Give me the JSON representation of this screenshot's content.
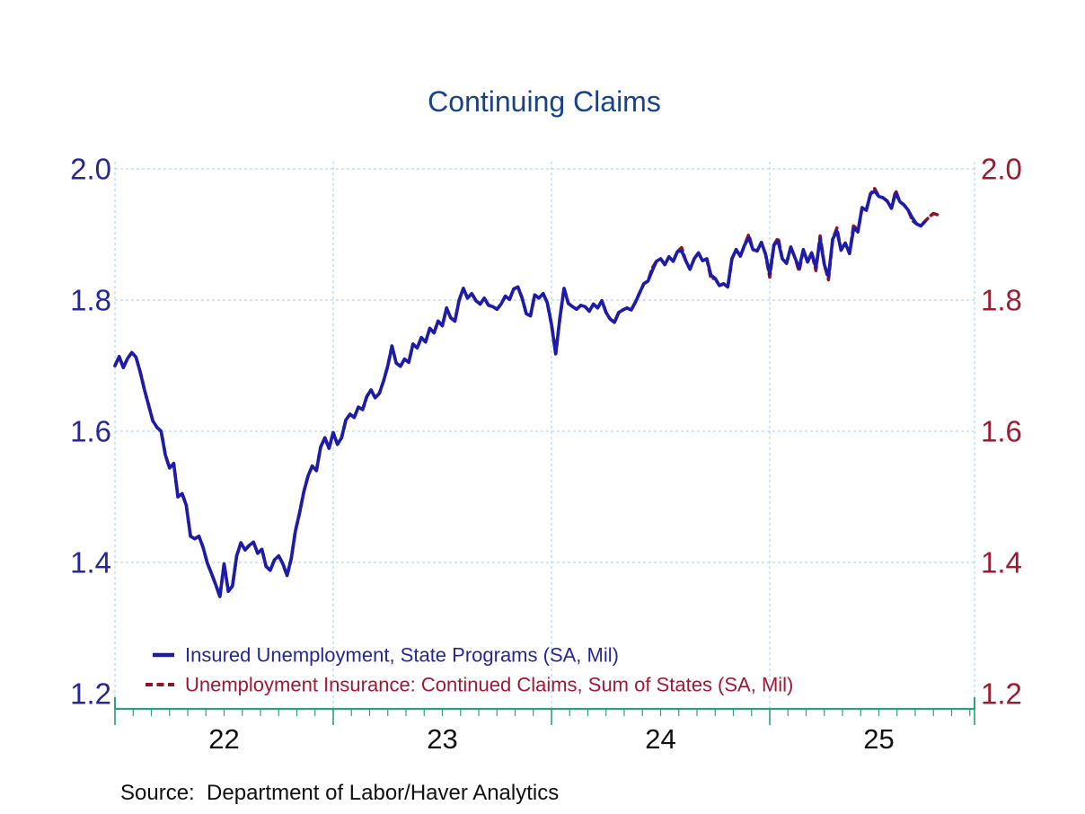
{
  "colors": {
    "title": "#17438C",
    "left_axis_text": "#26269B",
    "right_axis_text": "#9C1B31",
    "x_axis_text": "#111111",
    "axis_line": "#2F9E82",
    "gridline": "#A9CFE2",
    "series1_line": "#1C1CAB",
    "series2_line": "#8E1624",
    "legend1_text": "#26269B",
    "legend2_text": "#A21834",
    "source_text": "#111111",
    "background": "#FFFFFF"
  },
  "chart_data": {
    "type": "line",
    "title": "Continuing Claims",
    "source": "Source:  Department of Labor/Haver Analytics",
    "legend_position": "bottom-left inside plot area",
    "grid": "dashed light-blue horizontal and vertical (year) gridlines",
    "y_axis": {
      "tick_labels": [
        "2.0",
        "1.8",
        "1.6",
        "1.4",
        "1.2"
      ],
      "tick_values": [
        2.0,
        1.8,
        1.6,
        1.4,
        1.2
      ],
      "gridline_values": [
        2.0,
        1.8,
        1.6,
        1.4
      ],
      "ylim": [
        1.17,
        2.0
      ],
      "labels_on_both_sides": true
    },
    "x_axis": {
      "frequency": "weekly",
      "weeks_per_year": 52,
      "months_per_year": 12,
      "year_boundary_weeks": [
        0,
        52,
        104,
        156
      ],
      "axis_end_week": 204.8,
      "year_labels": [
        {
          "label": "22",
          "center_week": 26
        },
        {
          "label": "23",
          "center_week": 78
        },
        {
          "label": "24",
          "center_week": 130
        },
        {
          "label": "25",
          "center_week": 182
        }
      ]
    },
    "series": [
      {
        "name": "Insured Unemployment, State Programs (SA, Mil)",
        "color": "#1C1CAB",
        "line_style": "solid",
        "start_week": 0,
        "weekly_values": [
          1.7,
          1.714,
          1.697,
          1.711,
          1.72,
          1.713,
          1.691,
          1.664,
          1.64,
          1.616,
          1.606,
          1.6,
          1.564,
          1.544,
          1.551,
          1.5,
          1.505,
          1.487,
          1.44,
          1.436,
          1.44,
          1.423,
          1.399,
          1.383,
          1.366,
          1.348,
          1.398,
          1.356,
          1.364,
          1.41,
          1.43,
          1.419,
          1.426,
          1.431,
          1.414,
          1.42,
          1.394,
          1.388,
          1.404,
          1.41,
          1.398,
          1.38,
          1.406,
          1.448,
          1.476,
          1.508,
          1.532,
          1.547,
          1.54,
          1.576,
          1.59,
          1.574,
          1.598,
          1.58,
          1.59,
          1.617,
          1.626,
          1.621,
          1.637,
          1.633,
          1.653,
          1.663,
          1.651,
          1.658,
          1.677,
          1.7,
          1.73,
          1.704,
          1.699,
          1.71,
          1.705,
          1.733,
          1.727,
          1.743,
          1.736,
          1.757,
          1.75,
          1.768,
          1.761,
          1.788,
          1.773,
          1.768,
          1.8,
          1.818,
          1.803,
          1.81,
          1.799,
          1.794,
          1.803,
          1.792,
          1.79,
          1.786,
          1.794,
          1.806,
          1.801,
          1.817,
          1.82,
          1.803,
          1.779,
          1.776,
          1.808,
          1.803,
          1.81,
          1.796,
          1.763,
          1.718,
          1.772,
          1.818,
          1.795,
          1.79,
          1.786,
          1.792,
          1.79,
          1.783,
          1.794,
          1.788,
          1.799,
          1.781,
          1.771,
          1.766,
          1.781,
          1.785,
          1.788,
          1.785,
          1.797,
          1.811,
          1.825,
          1.829,
          1.845,
          1.859,
          1.863,
          1.854,
          1.866,
          1.859,
          1.874,
          1.875,
          1.86,
          1.847,
          1.863,
          1.872,
          1.86,
          1.863,
          1.838,
          1.833,
          1.822,
          1.825,
          1.82,
          1.863,
          1.877,
          1.867,
          1.884,
          1.895,
          1.877,
          1.875,
          1.888,
          1.87,
          1.84,
          1.884,
          1.89,
          1.863,
          1.856,
          1.881,
          1.865,
          1.849,
          1.877,
          1.858,
          1.872,
          1.85,
          1.893,
          1.854,
          1.836,
          1.893,
          1.905,
          1.876,
          1.887,
          1.871,
          1.91,
          1.904,
          1.941,
          1.937,
          1.962,
          1.966,
          1.958,
          1.956,
          1.951,
          1.94,
          1.963,
          1.95,
          1.945,
          1.937,
          1.925,
          1.916,
          1.913,
          1.92
        ]
      },
      {
        "name": "Unemployment Insurance: Continued Claims, Sum of States (SA, Mil)",
        "color": "#8E1624",
        "line_style": "dashed",
        "start_week": 0,
        "weekly_values": [
          1.7,
          1.714,
          1.697,
          1.711,
          1.72,
          1.713,
          1.691,
          1.664,
          1.64,
          1.616,
          1.606,
          1.6,
          1.564,
          1.544,
          1.551,
          1.5,
          1.505,
          1.487,
          1.44,
          1.436,
          1.44,
          1.423,
          1.399,
          1.383,
          1.366,
          1.348,
          1.398,
          1.356,
          1.364,
          1.41,
          1.43,
          1.419,
          1.426,
          1.431,
          1.414,
          1.42,
          1.394,
          1.388,
          1.404,
          1.41,
          1.398,
          1.38,
          1.406,
          1.448,
          1.476,
          1.508,
          1.532,
          1.547,
          1.54,
          1.576,
          1.59,
          1.574,
          1.598,
          1.58,
          1.59,
          1.617,
          1.626,
          1.621,
          1.637,
          1.633,
          1.653,
          1.663,
          1.651,
          1.658,
          1.677,
          1.7,
          1.73,
          1.704,
          1.699,
          1.71,
          1.705,
          1.733,
          1.727,
          1.743,
          1.736,
          1.757,
          1.75,
          1.768,
          1.761,
          1.788,
          1.773,
          1.768,
          1.8,
          1.818,
          1.803,
          1.81,
          1.799,
          1.794,
          1.803,
          1.792,
          1.79,
          1.786,
          1.794,
          1.806,
          1.801,
          1.817,
          1.82,
          1.803,
          1.779,
          1.776,
          1.808,
          1.803,
          1.81,
          1.796,
          1.763,
          1.718,
          1.772,
          1.818,
          1.795,
          1.79,
          1.786,
          1.792,
          1.79,
          1.783,
          1.794,
          1.788,
          1.799,
          1.781,
          1.771,
          1.766,
          1.781,
          1.785,
          1.788,
          1.785,
          1.797,
          1.811,
          1.825,
          1.829,
          1.849,
          1.859,
          1.863,
          1.854,
          1.866,
          1.859,
          1.874,
          1.88,
          1.86,
          1.847,
          1.863,
          1.872,
          1.86,
          1.863,
          1.833,
          1.833,
          1.822,
          1.825,
          1.82,
          1.863,
          1.877,
          1.867,
          1.884,
          1.9,
          1.877,
          1.875,
          1.888,
          1.87,
          1.835,
          1.884,
          1.895,
          1.863,
          1.856,
          1.881,
          1.865,
          1.844,
          1.877,
          1.858,
          1.872,
          1.845,
          1.898,
          1.854,
          1.831,
          1.893,
          1.91,
          1.876,
          1.887,
          1.871,
          1.915,
          1.904,
          1.941,
          1.937,
          1.962,
          1.97,
          1.958,
          1.956,
          1.951,
          1.94,
          1.967,
          1.95,
          1.945,
          1.937,
          1.921,
          1.916,
          1.913,
          1.92,
          1.927,
          1.932,
          1.93
        ]
      }
    ]
  }
}
